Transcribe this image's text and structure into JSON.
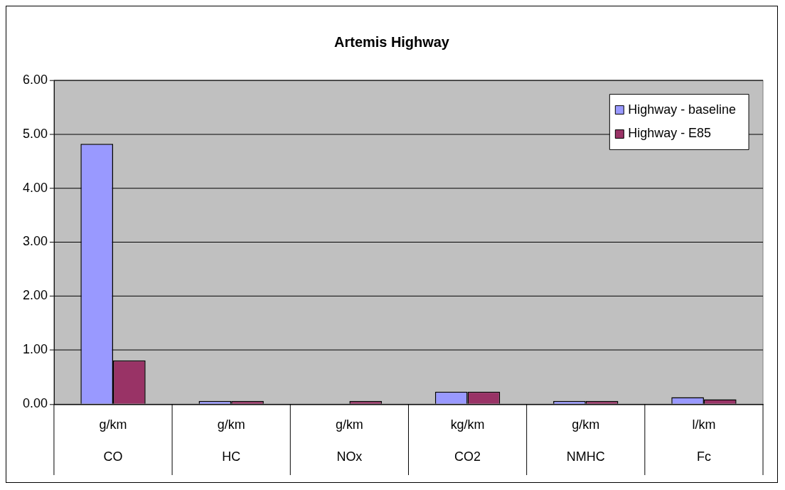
{
  "chart_data": {
    "type": "bar",
    "title": "Artemis Highway",
    "categories": [
      "g/km\nCO",
      "g/km\nHC",
      "g/km\nNOx",
      "kg/km\nCO2",
      "g/km\nNMHC",
      "l/km\nFc"
    ],
    "series": [
      {
        "name": "Highway - baseline",
        "color": "#9999ff",
        "values": [
          4.82,
          0.06,
          0,
          0.23,
          0.06,
          0.13
        ]
      },
      {
        "name": "Highway - E85",
        "color": "#993366",
        "values": [
          0.81,
          0.06,
          0.06,
          0.23,
          0.06,
          0.09
        ]
      }
    ],
    "ylim": [
      0,
      6
    ],
    "yticks": [
      {
        "value": 0,
        "label": "0.00"
      },
      {
        "value": 1,
        "label": "1.00"
      },
      {
        "value": 2,
        "label": "2.00"
      },
      {
        "value": 3,
        "label": "3.00"
      },
      {
        "value": 4,
        "label": "4.00"
      },
      {
        "value": 5,
        "label": "5.00"
      },
      {
        "value": 6,
        "label": "6.00"
      }
    ],
    "grid": "y",
    "legend": "top right"
  }
}
